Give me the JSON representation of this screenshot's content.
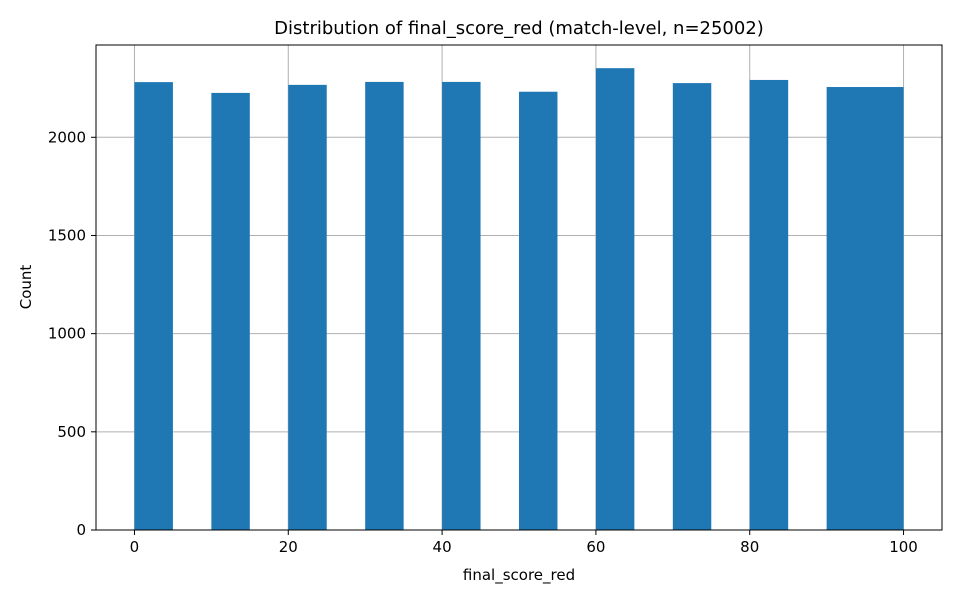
{
  "chart_data": {
    "type": "bar",
    "title": "Distribution of final_score_red (match-level, n=25002)",
    "xlabel": "final_score_red",
    "ylabel": "Count",
    "xlim": [
      -5,
      105
    ],
    "ylim": [
      0,
      2470
    ],
    "x_ticks": [
      0,
      20,
      40,
      60,
      80,
      100
    ],
    "y_ticks": [
      0,
      500,
      1000,
      1500,
      2000
    ],
    "grid": true,
    "bar_color": "#1f77b4",
    "bins": [
      {
        "x0": 0,
        "x1": 5,
        "count": 2281
      },
      {
        "x0": 10,
        "x1": 15,
        "count": 2226
      },
      {
        "x0": 20,
        "x1": 25,
        "count": 2267
      },
      {
        "x0": 30,
        "x1": 35,
        "count": 2282
      },
      {
        "x0": 40,
        "x1": 45,
        "count": 2282
      },
      {
        "x0": 50,
        "x1": 55,
        "count": 2232
      },
      {
        "x0": 60,
        "x1": 65,
        "count": 2352
      },
      {
        "x0": 70,
        "x1": 75,
        "count": 2276
      },
      {
        "x0": 80,
        "x1": 85,
        "count": 2292
      },
      {
        "x0": 90,
        "x1": 100,
        "count": 2256
      }
    ]
  }
}
